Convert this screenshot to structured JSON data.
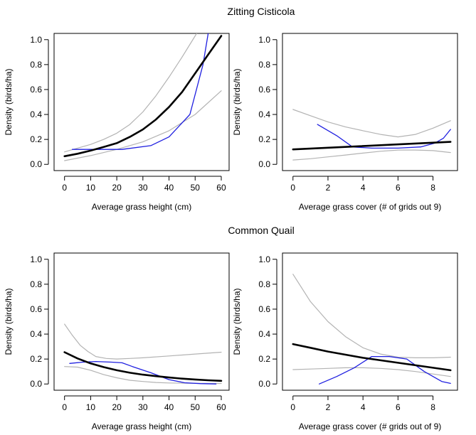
{
  "figure": {
    "row_titles": [
      "Zitting Cisticola",
      "Common Quail"
    ]
  },
  "chart_data": [
    {
      "type": "line",
      "panel": "top-left",
      "xlabel": "Average grass height (cm)",
      "ylabel": "Density (birds/ha)",
      "xlim": [
        -4,
        63
      ],
      "ylim": [
        -0.05,
        1.05
      ],
      "xticks": [
        0,
        10,
        20,
        30,
        40,
        50,
        60
      ],
      "yticks": [
        0.0,
        0.2,
        0.4,
        0.6,
        0.8,
        1.0
      ],
      "xtick_labels": [
        "0",
        "10",
        "20",
        "30",
        "40",
        "50",
        "60"
      ],
      "ytick_labels": [
        "0.0",
        "0.2",
        "0.4",
        "0.6",
        "0.8",
        "1.0"
      ],
      "grid": false,
      "series": [
        {
          "role": "upper-bound",
          "color": "#b3b3b3",
          "width": 1.2,
          "x": [
            0,
            5,
            10,
            15,
            20,
            25,
            30,
            35,
            40,
            45,
            50,
            55
          ],
          "y": [
            0.1,
            0.13,
            0.16,
            0.2,
            0.25,
            0.32,
            0.42,
            0.55,
            0.7,
            0.86,
            1.03,
            1.2
          ]
        },
        {
          "role": "lower-bound",
          "color": "#b3b3b3",
          "width": 1.2,
          "x": [
            0,
            10,
            20,
            30,
            40,
            50,
            60
          ],
          "y": [
            0.03,
            0.07,
            0.12,
            0.18,
            0.27,
            0.4,
            0.59
          ]
        },
        {
          "role": "observed",
          "color": "#1f1fe0",
          "width": 1.3,
          "x": [
            3,
            10,
            22,
            33,
            40,
            48,
            53,
            55
          ],
          "y": [
            0.12,
            0.12,
            0.12,
            0.15,
            0.22,
            0.4,
            0.8,
            1.05
          ]
        },
        {
          "role": "fitted",
          "color": "#000000",
          "width": 2.6,
          "x": [
            0,
            5,
            10,
            15,
            20,
            25,
            30,
            35,
            40,
            45,
            50,
            55,
            60
          ],
          "y": [
            0.065,
            0.085,
            0.11,
            0.14,
            0.17,
            0.22,
            0.28,
            0.36,
            0.46,
            0.58,
            0.73,
            0.88,
            1.03
          ]
        }
      ]
    },
    {
      "type": "line",
      "panel": "top-right",
      "xlabel": "Average grass cover (# of grids out 9)",
      "ylabel": "Density (birds/ha)",
      "xlim": [
        -0.6,
        9.4
      ],
      "ylim": [
        -0.05,
        1.05
      ],
      "xticks": [
        0,
        2,
        4,
        6,
        8
      ],
      "yticks": [
        0.0,
        0.2,
        0.4,
        0.6,
        0.8,
        1.0
      ],
      "xtick_labels": [
        "0",
        "2",
        "4",
        "6",
        "8"
      ],
      "ytick_labels": [
        "0.0",
        "0.2",
        "0.4",
        "0.6",
        "0.8",
        "1.0"
      ],
      "grid": false,
      "series": [
        {
          "role": "upper-bound",
          "color": "#b3b3b3",
          "width": 1.2,
          "x": [
            0,
            1,
            2,
            3,
            4,
            5,
            6,
            7,
            8,
            9
          ],
          "y": [
            0.44,
            0.39,
            0.34,
            0.3,
            0.27,
            0.24,
            0.22,
            0.24,
            0.29,
            0.35
          ]
        },
        {
          "role": "lower-bound",
          "color": "#b3b3b3",
          "width": 1.2,
          "x": [
            0,
            1,
            2,
            3,
            4,
            5,
            6,
            7,
            8,
            9
          ],
          "y": [
            0.035,
            0.045,
            0.06,
            0.075,
            0.09,
            0.105,
            0.115,
            0.115,
            0.11,
            0.095
          ]
        },
        {
          "role": "observed",
          "color": "#1f1fe0",
          "width": 1.3,
          "x": [
            1.4,
            2.5,
            3.4,
            4.5,
            6,
            7.3,
            8.1,
            8.6,
            9
          ],
          "y": [
            0.32,
            0.23,
            0.14,
            0.13,
            0.13,
            0.14,
            0.17,
            0.21,
            0.28
          ]
        },
        {
          "role": "fitted",
          "color": "#000000",
          "width": 2.6,
          "x": [
            0,
            9
          ],
          "y": [
            0.12,
            0.18
          ]
        }
      ]
    },
    {
      "type": "line",
      "panel": "bottom-left",
      "xlabel": "Average grass height (cm)",
      "ylabel": "Density (birds/ha)",
      "xlim": [
        -4,
        63
      ],
      "ylim": [
        -0.05,
        1.05
      ],
      "xticks": [
        0,
        10,
        20,
        30,
        40,
        50,
        60
      ],
      "yticks": [
        0.0,
        0.2,
        0.4,
        0.6,
        0.8,
        1.0
      ],
      "xtick_labels": [
        "0",
        "10",
        "20",
        "30",
        "40",
        "50",
        "60"
      ],
      "ytick_labels": [
        "0.0",
        "0.2",
        "0.4",
        "0.6",
        "0.8",
        "1.0"
      ],
      "grid": false,
      "series": [
        {
          "role": "upper-bound",
          "color": "#b3b3b3",
          "width": 1.2,
          "x": [
            0,
            3,
            6,
            9,
            12,
            16,
            20,
            25,
            30,
            40,
            50,
            60
          ],
          "y": [
            0.48,
            0.39,
            0.31,
            0.26,
            0.22,
            0.205,
            0.2,
            0.205,
            0.21,
            0.225,
            0.24,
            0.255
          ]
        },
        {
          "role": "lower-bound",
          "color": "#b3b3b3",
          "width": 1.2,
          "x": [
            0,
            5,
            10,
            15,
            20,
            25,
            30,
            35,
            40,
            50,
            60
          ],
          "y": [
            0.14,
            0.135,
            0.11,
            0.075,
            0.05,
            0.03,
            0.02,
            0.012,
            0.008,
            0.005,
            0.004
          ]
        },
        {
          "role": "observed",
          "color": "#1f1fe0",
          "width": 1.3,
          "x": [
            2,
            7,
            12,
            18,
            22,
            26,
            33,
            40,
            46,
            52,
            58
          ],
          "y": [
            0.165,
            0.175,
            0.18,
            0.175,
            0.17,
            0.14,
            0.09,
            0.035,
            0.01,
            0.003,
            0.0
          ]
        },
        {
          "role": "fitted",
          "color": "#000000",
          "width": 2.6,
          "x": [
            0,
            5,
            10,
            15,
            20,
            25,
            30,
            35,
            40,
            45,
            50,
            55,
            60
          ],
          "y": [
            0.255,
            0.205,
            0.165,
            0.135,
            0.11,
            0.09,
            0.075,
            0.063,
            0.052,
            0.043,
            0.036,
            0.03,
            0.025
          ]
        }
      ]
    },
    {
      "type": "line",
      "panel": "bottom-right",
      "xlabel": "Average grass cover (# grids out of 9)",
      "ylabel": "Density (birds/ha)",
      "xlim": [
        -0.6,
        9.4
      ],
      "ylim": [
        -0.05,
        1.05
      ],
      "xticks": [
        0,
        2,
        4,
        6,
        8
      ],
      "yticks": [
        0.0,
        0.2,
        0.4,
        0.6,
        0.8,
        1.0
      ],
      "xtick_labels": [
        "0",
        "2",
        "4",
        "6",
        "8"
      ],
      "ytick_labels": [
        "0.0",
        "0.2",
        "0.4",
        "0.6",
        "0.8",
        "1.0"
      ],
      "grid": false,
      "series": [
        {
          "role": "upper-bound",
          "color": "#b3b3b3",
          "width": 1.2,
          "x": [
            0,
            1,
            2,
            3,
            4,
            5,
            6,
            7,
            8,
            9
          ],
          "y": [
            0.88,
            0.66,
            0.5,
            0.38,
            0.29,
            0.24,
            0.215,
            0.21,
            0.21,
            0.215
          ]
        },
        {
          "role": "lower-bound",
          "color": "#b3b3b3",
          "width": 1.2,
          "x": [
            0,
            1,
            2,
            3,
            4,
            5,
            6,
            7,
            8,
            9
          ],
          "y": [
            0.115,
            0.12,
            0.125,
            0.13,
            0.13,
            0.125,
            0.115,
            0.1,
            0.08,
            0.06
          ]
        },
        {
          "role": "observed",
          "color": "#1f1fe0",
          "width": 1.3,
          "x": [
            1.5,
            2.5,
            3.5,
            4.5,
            5.5,
            6.5,
            7.5,
            8.5,
            9
          ],
          "y": [
            0.0,
            0.06,
            0.13,
            0.22,
            0.22,
            0.2,
            0.1,
            0.02,
            0.005
          ]
        },
        {
          "role": "fitted",
          "color": "#000000",
          "width": 2.6,
          "x": [
            0,
            1,
            2,
            3,
            4,
            5,
            6,
            7,
            8,
            9
          ],
          "y": [
            0.32,
            0.29,
            0.26,
            0.235,
            0.21,
            0.19,
            0.17,
            0.15,
            0.13,
            0.11
          ]
        }
      ]
    }
  ]
}
